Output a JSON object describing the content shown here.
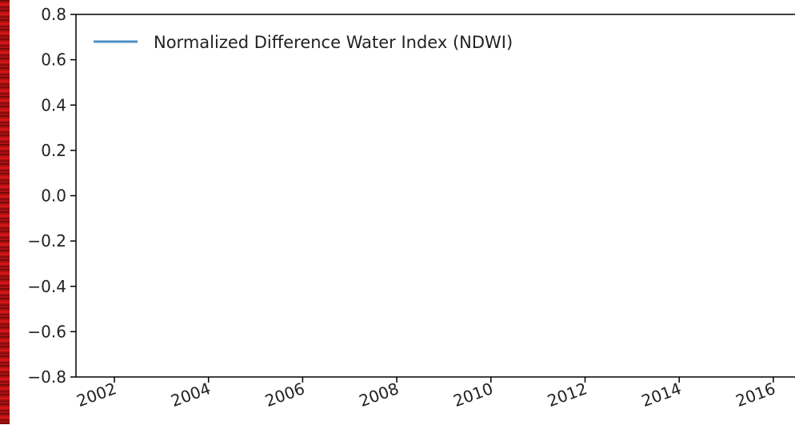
{
  "chart_data": {
    "type": "line",
    "title": "",
    "xlabel": "",
    "ylabel": "",
    "x_ticks": [
      "2002",
      "2004",
      "2006",
      "2008",
      "2010",
      "2012",
      "2014",
      "2016"
    ],
    "y_ticks": [
      "0.8",
      "0.6",
      "0.4",
      "0.2",
      "0.0",
      "−0.2",
      "−0.4",
      "−0.6",
      "−0.8"
    ],
    "ylim": [
      -0.8,
      0.8
    ],
    "grid": false,
    "legend_position": "top-left",
    "series": [
      {
        "name": "Normalized Difference Water Index (NDWI)",
        "color": "#4c8fc4",
        "x": [],
        "values": []
      }
    ]
  }
}
